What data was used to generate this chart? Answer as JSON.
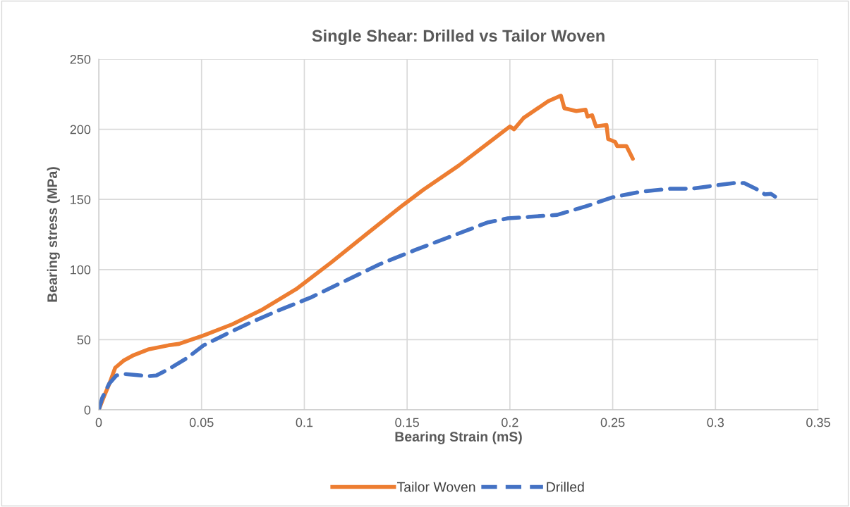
{
  "chart_data": {
    "type": "line",
    "title": "Single Shear: Drilled vs Tailor Woven",
    "xlabel": "Bearing Strain (mS)",
    "ylabel": "Bearing stress (MPa)",
    "xlim": [
      0,
      0.35
    ],
    "xticks": [
      0,
      0.05,
      0.1,
      0.15,
      0.2,
      0.25,
      0.3,
      0.35
    ],
    "ylim": [
      0,
      250
    ],
    "yticks": [
      0,
      50,
      100,
      150,
      200,
      250
    ],
    "grid": true,
    "legend": "bottom",
    "marker": "none",
    "series": [
      {
        "name": "Tailor Woven",
        "color": "#ed7d31",
        "line_style": "solid",
        "x": [
          0,
          0.0027,
          0.005,
          0.008,
          0.012,
          0.017,
          0.024,
          0.034,
          0.039,
          0.051,
          0.065,
          0.079,
          0.096,
          0.113,
          0.13,
          0.148,
          0.158,
          0.175,
          0.192,
          0.2,
          0.202,
          0.2066,
          0.2186,
          0.2248,
          0.2265,
          0.2323,
          0.2368,
          0.2378,
          0.24,
          0.2419,
          0.247,
          0.2478,
          0.2512,
          0.2522,
          0.2567,
          0.2598
        ],
        "values": [
          0,
          10,
          18,
          30,
          35,
          39,
          43,
          46,
          47,
          53,
          61,
          71,
          86,
          105,
          125,
          146,
          157,
          174,
          193,
          202,
          200,
          208,
          220,
          224,
          215,
          213,
          214,
          209,
          210,
          202,
          203,
          193,
          191,
          188,
          188,
          179
        ]
      },
      {
        "name": "Drilled",
        "color": "#4472c4",
        "line_style": "dashed",
        "x": [
          0,
          0.0017,
          0.005,
          0.0086,
          0.013,
          0.017,
          0.024,
          0.028,
          0.034,
          0.043,
          0.051,
          0.062,
          0.072,
          0.086,
          0.103,
          0.12,
          0.137,
          0.154,
          0.172,
          0.189,
          0.199,
          0.209,
          0.223,
          0.2368,
          0.25,
          0.264,
          0.278,
          0.288,
          0.298,
          0.309,
          0.314,
          0.321,
          0.324,
          0.327,
          0.329
        ],
        "values": [
          0,
          8.5,
          18.5,
          24.5,
          25.5,
          25,
          24,
          24.5,
          29,
          37,
          46,
          54,
          61,
          70,
          80,
          92,
          104,
          114,
          124,
          133.5,
          136.5,
          137.5,
          139,
          145,
          151.5,
          155.6,
          157.6,
          157.6,
          159.6,
          161.6,
          161.6,
          156.6,
          153.6,
          154,
          152
        ]
      }
    ]
  }
}
